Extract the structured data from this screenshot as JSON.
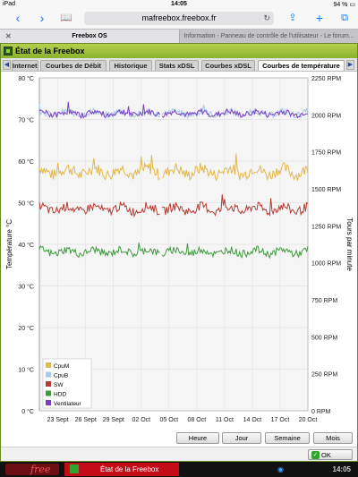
{
  "status_bar": {
    "device": "iPad",
    "time": "14:05",
    "battery": "94 %"
  },
  "browser": {
    "url": "mafreebox.freebox.fr",
    "tabs": [
      {
        "label": "Freebox OS",
        "active": true
      },
      {
        "label": "Information - Panneau de contrôle de l'utilisateur - Le forum...",
        "active": false
      }
    ]
  },
  "window": {
    "title": "État de la Freebox",
    "tabs": [
      "Internet",
      "Courbes de Débit",
      "Historique",
      "Stats xDSL",
      "Courbes xDSL",
      "Courbes de température"
    ],
    "active_tab": "Courbes de température"
  },
  "chart_data": {
    "type": "line",
    "ylabel": "Température °C",
    "y2label": "Tours par minute",
    "ylim": [
      0,
      80
    ],
    "y2lim": [
      0,
      2250
    ],
    "yticks": [
      "0 °C",
      "10 °C",
      "20 °C",
      "30 °C",
      "40 °C",
      "50 °C",
      "60 °C",
      "70 °C",
      "80 °C"
    ],
    "y2ticks": [
      "0 RPM",
      "250 RPM",
      "500 RPM",
      "750 RPM",
      "1000 RPM",
      "1250 RPM",
      "1500 RPM",
      "1750 RPM",
      "2000 RPM",
      "2250 RPM"
    ],
    "xticks": [
      "23 Sept",
      "26 Sept",
      "29 Sept",
      "02 Oct",
      "05 Oct",
      "08 Oct",
      "11 Oct",
      "14 Oct",
      "17 Oct",
      "20 Oct"
    ],
    "grid": true,
    "legend_position": "bottom-left",
    "x_start": "2014-09-21",
    "x_end": "2014-10-20",
    "series": [
      {
        "name": "CpuM",
        "color": "#e3b84a",
        "base": 57.5,
        "amp": 1.4,
        "axis": "left"
      },
      {
        "name": "CpuB",
        "color": "#a9c9ea",
        "base": 71.5,
        "amp": 0.8,
        "axis": "left"
      },
      {
        "name": "SW",
        "color": "#b83a32",
        "base": 48.5,
        "amp": 1.1,
        "axis": "left"
      },
      {
        "name": "HDD",
        "color": "#3f9a3f",
        "base": 38.2,
        "amp": 0.9,
        "axis": "left"
      },
      {
        "name": "Ventilateur",
        "color": "#7b3fc4",
        "base": 2010,
        "amp": 20,
        "axis": "right"
      }
    ]
  },
  "range_buttons": [
    "Heure",
    "Jour",
    "Semaine",
    "Mois"
  ],
  "ok_label": "OK",
  "taskbar": {
    "task_label": "État de la Freebox",
    "clock": "14:05"
  }
}
